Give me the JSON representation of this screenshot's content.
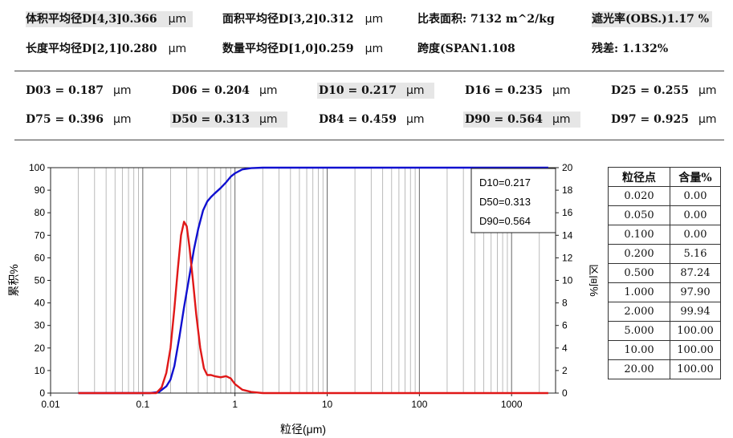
{
  "summary": [
    {
      "label": "体积平均径D[4,3]",
      "value": "0.366",
      "unit": "μm",
      "highlight": true
    },
    {
      "label": "面积平均径D[3,2]",
      "value": "0.312",
      "unit": "μm",
      "highlight": false
    },
    {
      "label": "比表面积:",
      "value": "7132  m^2/kg",
      "unit": "",
      "highlight": false
    },
    {
      "label": "遮光率(OBS.)",
      "value": "1.17  %",
      "unit": "",
      "highlight": true
    },
    {
      "label": "长度平均径D[2,1]",
      "value": "0.280",
      "unit": "μm",
      "highlight": false
    },
    {
      "label": "数量平均径D[1,0]",
      "value": "0.259",
      "unit": "μm",
      "highlight": false
    },
    {
      "label": "跨度(SPAN",
      "value": "1.108",
      "unit": "",
      "highlight": false
    },
    {
      "label": "残差:",
      "value": "1.132%",
      "unit": "",
      "highlight": false
    }
  ],
  "dvalues": [
    {
      "text": "D03 = 0.187",
      "unit": "μm",
      "highlight": false
    },
    {
      "text": "D06 = 0.204",
      "unit": "μm",
      "highlight": false
    },
    {
      "text": "D10 = 0.217",
      "unit": "μm",
      "highlight": true
    },
    {
      "text": "D16 = 0.235",
      "unit": "μm",
      "highlight": false
    },
    {
      "text": "D25 = 0.255",
      "unit": "μm",
      "highlight": false
    },
    {
      "text": "D75 = 0.396",
      "unit": "μm",
      "highlight": false
    },
    {
      "text": "D50 = 0.313",
      "unit": "μm",
      "highlight": true
    },
    {
      "text": "D84 = 0.459",
      "unit": "μm",
      "highlight": false
    },
    {
      "text": "D90 = 0.564",
      "unit": "μm",
      "highlight": true
    },
    {
      "text": "D97 = 0.925",
      "unit": "μm",
      "highlight": false
    }
  ],
  "chart_data": {
    "type": "line",
    "xlabel": "粒径(μm)",
    "ylabel_left": "累积%",
    "ylabel_right": "区间%",
    "x_scale": "log",
    "xlim": [
      0.01,
      3000
    ],
    "x_ticks": [
      "0.01",
      "0.1",
      "1",
      "10",
      "100",
      "1000"
    ],
    "ylim_left": [
      0,
      100
    ],
    "ylim_right": [
      0,
      20
    ],
    "y_ticks_left": [
      "0",
      "10",
      "20",
      "30",
      "40",
      "50",
      "60",
      "70",
      "80",
      "90",
      "100"
    ],
    "y_ticks_right": [
      "0",
      "2",
      "4",
      "6",
      "8",
      "10",
      "12",
      "14",
      "16",
      "18",
      "20"
    ],
    "grid": "vertical",
    "legend_box": {
      "position": "top-right",
      "lines": [
        "D10=0.217",
        "D50=0.313",
        "D90=0.564"
      ]
    },
    "series": [
      {
        "axis": "left",
        "color": "#1010d0",
        "x": [
          0.02,
          0.12,
          0.15,
          0.18,
          0.2,
          0.22,
          0.25,
          0.28,
          0.3,
          0.33,
          0.36,
          0.4,
          0.45,
          0.5,
          0.55,
          0.6,
          0.7,
          0.8,
          0.9,
          1.0,
          1.2,
          1.5,
          2.0,
          3.0,
          5.0,
          2500
        ],
        "y": [
          0,
          0,
          0.5,
          3,
          6,
          12,
          25,
          38,
          45,
          55,
          64,
          73,
          81,
          85,
          87,
          88.5,
          91,
          93.5,
          96,
          97.5,
          99.2,
          99.8,
          100,
          100,
          100,
          100
        ]
      },
      {
        "axis": "right",
        "color": "#e01818",
        "x": [
          0.02,
          0.14,
          0.16,
          0.18,
          0.2,
          0.22,
          0.24,
          0.26,
          0.28,
          0.3,
          0.32,
          0.35,
          0.38,
          0.42,
          0.46,
          0.5,
          0.55,
          0.6,
          0.7,
          0.8,
          0.9,
          1.0,
          1.2,
          1.5,
          2.0,
          2500
        ],
        "y": [
          0,
          0,
          0.5,
          1.8,
          4,
          7.5,
          11,
          14,
          15.2,
          14.8,
          13,
          10,
          7,
          4,
          2.2,
          1.6,
          1.6,
          1.5,
          1.4,
          1.5,
          1.3,
          0.8,
          0.3,
          0.1,
          0,
          0
        ]
      }
    ]
  },
  "table": {
    "headers": [
      "粒径点",
      "含量%"
    ],
    "rows": [
      [
        "0.020",
        "0.00"
      ],
      [
        "0.050",
        "0.00"
      ],
      [
        "0.100",
        "0.00"
      ],
      [
        "0.200",
        "5.16"
      ],
      [
        "0.500",
        "87.24"
      ],
      [
        "1.000",
        "97.90"
      ],
      [
        "2.000",
        "99.94"
      ],
      [
        "5.000",
        "100.00"
      ],
      [
        "10.00",
        "100.00"
      ],
      [
        "20.00",
        "100.00"
      ]
    ]
  }
}
